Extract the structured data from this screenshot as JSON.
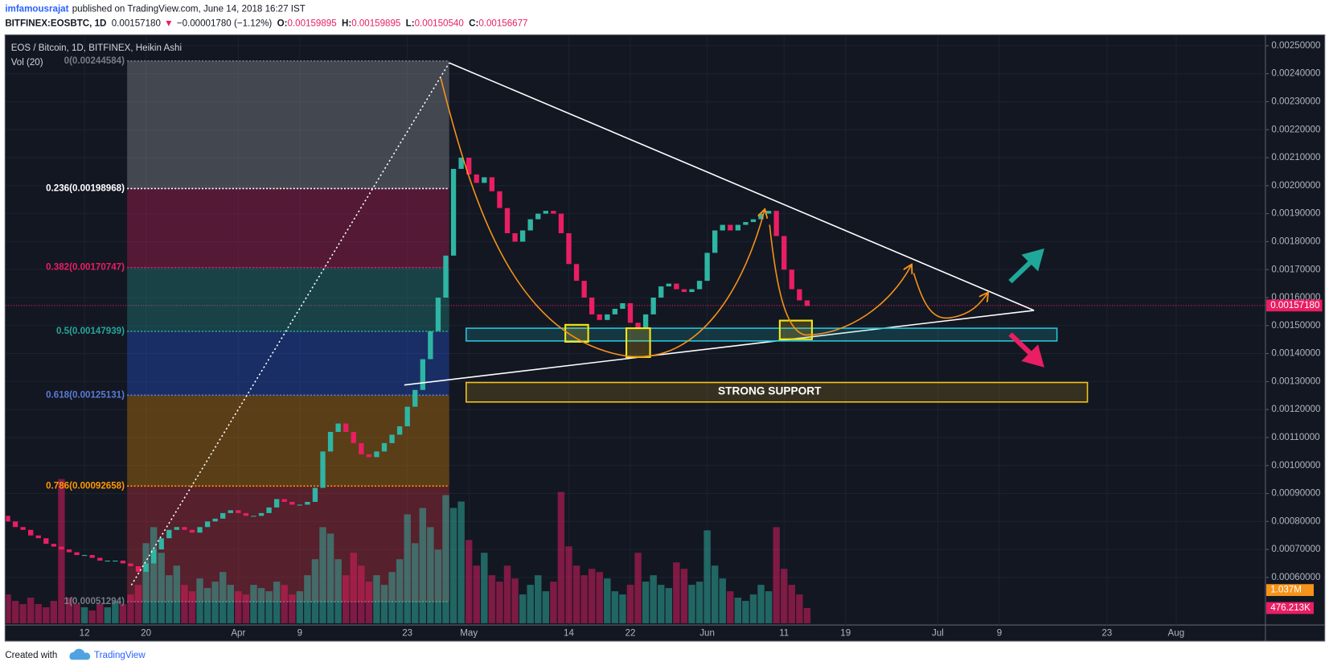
{
  "header": {
    "author": "imfamousrajat",
    "published": "published on TradingView.com, June 14, 2018 16:27 IST",
    "symbol": "BITFINEX:EOSBTC, 1D",
    "last": "0.00157180",
    "change_arrow": "▼",
    "change": "−0.00001780 (−1.12%)",
    "quote": [
      {
        "key": "O:",
        "value": "0.00159895"
      },
      {
        "key": "H:",
        "value": "0.00159895"
      },
      {
        "key": "L:",
        "value": "0.00150540"
      },
      {
        "key": "C:",
        "value": "0.00156677"
      }
    ]
  },
  "chart_data": {
    "type": "candlestick",
    "title": "EOS / Bitcoin, 1D, BITFINEX, Heikin Ashi",
    "volume_title": "Vol (20)",
    "up_color": "#2fb5a3",
    "down_color": "#e91e63",
    "grid": true,
    "categories": [
      null,
      null,
      null,
      null,
      null,
      null,
      null,
      null,
      null,
      null,
      "12",
      null,
      null,
      null,
      null,
      null,
      null,
      null,
      "20",
      null,
      null,
      null,
      null,
      null,
      null,
      null,
      null,
      null,
      null,
      null,
      "Apr",
      null,
      null,
      null,
      null,
      null,
      null,
      null,
      "9",
      null,
      null,
      null,
      null,
      null,
      null,
      null,
      null,
      null,
      null,
      null,
      null,
      null,
      "23",
      null,
      null,
      null,
      null,
      null,
      null,
      null,
      "May",
      null,
      null,
      null,
      null,
      null,
      null,
      null,
      null,
      null,
      null,
      null,
      null,
      "14",
      null,
      null,
      null,
      null,
      null,
      null,
      null,
      "22",
      null,
      null,
      null,
      null,
      null,
      null,
      null,
      null,
      null,
      "Jun",
      null,
      null,
      null,
      null,
      null,
      null,
      null,
      null,
      null,
      "11",
      null,
      null,
      null,
      null,
      null,
      null,
      null,
      "19",
      null,
      null,
      null,
      null,
      null,
      null,
      null,
      null,
      null,
      null,
      null,
      "Jul",
      null,
      null,
      null,
      null,
      null,
      null,
      null,
      "9",
      null,
      null,
      null,
      null,
      null,
      null,
      null,
      null,
      null,
      null,
      null,
      null,
      null,
      "23",
      null,
      null,
      null,
      null,
      null,
      null,
      null,
      null,
      "Aug",
      null,
      null,
      null,
      null,
      null,
      null,
      null,
      null,
      null,
      null,
      null,
      null
    ],
    "open": [
      0.00082,
      0.0008,
      0.00078,
      0.00077,
      0.00075,
      0.00074,
      0.00072,
      0.00071,
      0.0007,
      0.00069,
      0.00068,
      0.00068,
      0.00067,
      0.00066,
      0.00066,
      0.00066,
      0.00065,
      0.00064,
      0.00062,
      0.00065,
      0.0007,
      0.00074,
      0.00077,
      0.00078,
      0.00077,
      0.00076,
      0.00078,
      0.0008,
      0.00081,
      0.00083,
      0.00084,
      0.00083,
      0.00082,
      0.00082,
      0.00083,
      0.00085,
      0.00088,
      0.00087,
      0.00086,
      0.00086,
      0.00087,
      0.00092,
      0.00105,
      0.00112,
      0.00115,
      0.00112,
      0.00108,
      0.00104,
      0.00103,
      0.00105,
      0.00108,
      0.00111,
      0.00114,
      0.00121,
      0.00127,
      0.00138,
      0.00148,
      0.0016,
      0.00175,
      0.00206,
      0.0021,
      0.00204,
      0.00201,
      0.00203,
      0.00198,
      0.00192,
      0.00183,
      0.0018,
      0.00184,
      0.00188,
      0.0019,
      0.00191,
      0.0019,
      0.00183,
      0.00172,
      0.00166,
      0.0016,
      0.00154,
      0.00152,
      0.00154,
      0.00156,
      0.00158,
      0.00151,
      0.00149,
      0.00154,
      0.0016,
      0.00164,
      0.00165,
      0.00163,
      0.00162,
      0.00163,
      0.00166,
      0.00176,
      0.00184,
      0.00186,
      0.00184,
      0.00186,
      0.00187,
      0.00188,
      0.0019,
      0.00191,
      0.00182,
      0.0017,
      0.00163,
      0.00159,
      null,
      null,
      null,
      null,
      null,
      null,
      null,
      null,
      null,
      null,
      null,
      null,
      null,
      null,
      null,
      null,
      null,
      null,
      null,
      null,
      null,
      null,
      null,
      null,
      null,
      null,
      null,
      null,
      null,
      null,
      null,
      null,
      null,
      null,
      null,
      null,
      null,
      null,
      null,
      null,
      null,
      null,
      null,
      null,
      null,
      null,
      null,
      null,
      null,
      null,
      null,
      null,
      null,
      null,
      null,
      null,
      null,
      null,
      null,
      null
    ],
    "close": [
      0.0008,
      0.00078,
      0.00077,
      0.00075,
      0.00074,
      0.00072,
      0.00071,
      0.0007,
      0.00069,
      0.00068,
      0.00068,
      0.00067,
      0.00066,
      0.00066,
      0.00066,
      0.00065,
      0.00064,
      0.00062,
      0.00065,
      0.0007,
      0.00074,
      0.00077,
      0.00078,
      0.00077,
      0.00076,
      0.00078,
      0.0008,
      0.00081,
      0.00083,
      0.00084,
      0.00083,
      0.00082,
      0.00082,
      0.00083,
      0.00085,
      0.00088,
      0.00087,
      0.00086,
      0.00086,
      0.00087,
      0.00092,
      0.00105,
      0.00112,
      0.00115,
      0.00112,
      0.00108,
      0.00104,
      0.00103,
      0.00105,
      0.00108,
      0.00111,
      0.00114,
      0.00121,
      0.00127,
      0.00138,
      0.00148,
      0.0016,
      0.00175,
      0.00206,
      0.0021,
      0.00204,
      0.00201,
      0.00203,
      0.00198,
      0.00192,
      0.00183,
      0.0018,
      0.00184,
      0.00188,
      0.0019,
      0.00191,
      0.0019,
      0.00183,
      0.00172,
      0.00166,
      0.0016,
      0.00154,
      0.00152,
      0.00154,
      0.00156,
      0.00158,
      0.00151,
      0.00149,
      0.00154,
      0.0016,
      0.00164,
      0.00165,
      0.00163,
      0.00162,
      0.00163,
      0.00166,
      0.00176,
      0.00184,
      0.00186,
      0.00184,
      0.00186,
      0.00187,
      0.00188,
      0.0019,
      0.00191,
      0.00182,
      0.0017,
      0.00163,
      0.00159,
      0.00157,
      null,
      null,
      null,
      null,
      null,
      null,
      null,
      null,
      null,
      null,
      null,
      null,
      null,
      null,
      null,
      null,
      null,
      null,
      null,
      null,
      null,
      null,
      null,
      null,
      null,
      null,
      null,
      null,
      null,
      null,
      null,
      null,
      null,
      null,
      null,
      null,
      null,
      null,
      null,
      null,
      null,
      null,
      null,
      null,
      null,
      null,
      null,
      null,
      null,
      null,
      null,
      null,
      null,
      null,
      null,
      null,
      null,
      null,
      null,
      null
    ],
    "volume": [
      900000,
      700000,
      600000,
      800000,
      600000,
      500000,
      700000,
      4500000,
      800000,
      600000,
      500000,
      400000,
      600000,
      500000,
      700000,
      600000,
      900000,
      1200000,
      2500000,
      3000000,
      2200000,
      1500000,
      1800000,
      1200000,
      1000000,
      1400000,
      1100000,
      1300000,
      1600000,
      1200000,
      1000000,
      900000,
      1200000,
      1100000,
      1000000,
      1300000,
      1200000,
      900000,
      1000000,
      1500000,
      2000000,
      3000000,
      2800000,
      2000000,
      1500000,
      2200000,
      1800000,
      1300000,
      1500000,
      1200000,
      1600000,
      2000000,
      3400000,
      2500000,
      3600000,
      3000000,
      2300000,
      4000000,
      3600000,
      3800000,
      2600000,
      1800000,
      2200000,
      1500000,
      1300000,
      1800000,
      1400000,
      900000,
      1200000,
      1500000,
      1000000,
      1300000,
      4100000,
      2400000,
      1800000,
      1500000,
      1700000,
      1600000,
      1400000,
      1000000,
      900000,
      1200000,
      2200000,
      1300000,
      1500000,
      1200000,
      1100000,
      1900000,
      1700000,
      1200000,
      1300000,
      2900000,
      1800000,
      1400000,
      1000000,
      800000,
      700000,
      900000,
      1200000,
      1000000,
      3000000,
      1700000,
      1200000,
      900000,
      476213,
      null,
      null,
      null,
      null,
      null,
      null,
      null,
      null,
      null,
      null,
      null,
      null,
      null,
      null,
      null,
      null,
      null,
      null,
      null,
      null,
      null,
      null,
      null,
      null,
      null,
      null,
      null,
      null,
      null,
      null,
      null,
      null,
      null,
      null,
      null,
      null,
      null,
      null,
      null,
      null,
      null,
      null,
      null,
      null,
      null,
      null,
      null,
      null,
      null,
      null,
      null,
      null,
      null,
      null,
      null,
      null,
      null,
      null,
      null,
      null
    ],
    "ylim": [
      0.00043,
      0.002536
    ],
    "yticks": [
      {
        "value": 0.0006,
        "label": "0.00060000"
      },
      {
        "value": 0.0007,
        "label": "0.00070000"
      },
      {
        "value": 0.0008,
        "label": "0.00080000"
      },
      {
        "value": 0.0009,
        "label": "0.00090000"
      },
      {
        "value": 0.001,
        "label": "0.00100000"
      },
      {
        "value": 0.0011,
        "label": "0.00110000"
      },
      {
        "value": 0.0012,
        "label": "0.00120000"
      },
      {
        "value": 0.0013,
        "label": "0.00130000"
      },
      {
        "value": 0.0014,
        "label": "0.00140000"
      },
      {
        "value": 0.0015,
        "label": "0.00150000"
      },
      {
        "value": 0.0016,
        "label": "0.00160000"
      },
      {
        "value": 0.0017,
        "label": "0.00170000"
      },
      {
        "value": 0.0018,
        "label": "0.00180000"
      },
      {
        "value": 0.0019,
        "label": "0.00190000"
      },
      {
        "value": 0.002,
        "label": "0.00200000"
      },
      {
        "value": 0.0021,
        "label": "0.00210000"
      },
      {
        "value": 0.0022,
        "label": "0.00220000"
      },
      {
        "value": 0.0023,
        "label": "0.00230000"
      },
      {
        "value": 0.0024,
        "label": "0.00240000"
      },
      {
        "value": 0.0025,
        "label": "0.00250000"
      }
    ],
    "last_price": {
      "value": 0.0015718,
      "label": "0.00157180",
      "color": "#e91e63"
    },
    "volume_labels": [
      {
        "value": 1037000,
        "label": "1.037M",
        "color": "#f7931a"
      },
      {
        "value": 476213,
        "label": "476.213K",
        "color": "#e91e63"
      }
    ],
    "fib_levels": [
      {
        "price": 0.00244584,
        "label": "0(0.00244584)",
        "color": "#787b86",
        "fill": "#b2b5be"
      },
      {
        "price": 0.00198968,
        "label": "0.236(0.00198968)",
        "color": "#ffffff",
        "fill": "#e91e63"
      },
      {
        "price": 0.00170747,
        "label": "0.382(0.00170747)",
        "color": "#e91e63",
        "fill": "#26a69a"
      },
      {
        "price": 0.00147939,
        "label": "0.5(0.00147939)",
        "color": "#26a69a",
        "fill": "#2962ff"
      },
      {
        "price": 0.00125131,
        "label": "0.618(0.00125131)",
        "color": "#5b7bd6",
        "fill": "#ff9800"
      },
      {
        "price": 0.00092658,
        "label": "0.786(0.00092658)",
        "color": "#ff9800",
        "fill": "#f23645"
      },
      {
        "price": 0.00051294,
        "label": "1(0.00051294)",
        "color": "#787b86",
        "fill": "none"
      }
    ],
    "annotations": [
      "STRONG SUPPORT"
    ]
  },
  "footer": {
    "created": "Created with",
    "brand": "TradingView"
  }
}
